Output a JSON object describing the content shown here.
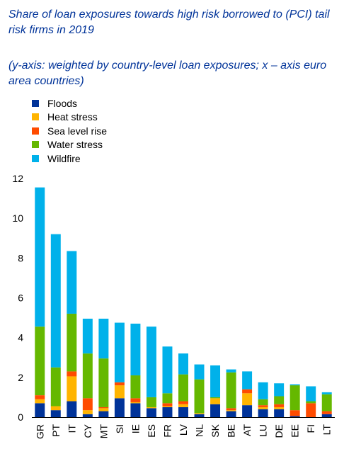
{
  "title": "Share of loan exposures towards high risk borrowed to (PCI) tail risk firms in 2019",
  "subtitle": "(y-axis: weighted by country-level loan exposures; x – axis euro area countries)",
  "chart_data": {
    "type": "bar",
    "stacked": true,
    "categories": [
      "GR",
      "PT",
      "IT",
      "CY",
      "MT",
      "SI",
      "IE",
      "ES",
      "FR",
      "LV",
      "NL",
      "SK",
      "BE",
      "AT",
      "LU",
      "DE",
      "EE",
      "FI",
      "LT"
    ],
    "series": [
      {
        "name": "Floods",
        "color": "#003399",
        "values": [
          0.7,
          0.35,
          0.8,
          0.15,
          0.3,
          0.95,
          0.7,
          0.45,
          0.5,
          0.5,
          0.15,
          0.65,
          0.3,
          0.6,
          0.4,
          0.4,
          0.05,
          0.0,
          0.15
        ]
      },
      {
        "name": "Heat stress",
        "color": "#FFB400",
        "values": [
          0.2,
          0.2,
          1.25,
          0.2,
          0.15,
          0.65,
          0.05,
          0.05,
          0.05,
          0.15,
          0.05,
          0.3,
          0.05,
          0.6,
          0.1,
          0.1,
          0.0,
          0.0,
          0.0
        ]
      },
      {
        "name": "Sea level rise",
        "color": "#FF4B00",
        "values": [
          0.2,
          0.0,
          0.25,
          0.6,
          0.05,
          0.15,
          0.2,
          0.0,
          0.15,
          0.15,
          0.0,
          0.0,
          0.1,
          0.2,
          0.1,
          0.15,
          0.3,
          0.7,
          0.15
        ]
      },
      {
        "name": "Water stress",
        "color": "#65B800",
        "values": [
          3.45,
          1.95,
          2.9,
          2.25,
          2.45,
          0.0,
          1.15,
          0.5,
          0.5,
          1.35,
          1.7,
          0.05,
          1.8,
          0.0,
          0.3,
          0.4,
          1.25,
          0.1,
          0.85
        ]
      },
      {
        "name": "Wildfire",
        "color": "#00B1EA",
        "values": [
          7.0,
          6.7,
          3.15,
          1.75,
          2.0,
          3.0,
          2.6,
          3.55,
          2.35,
          1.05,
          0.75,
          1.6,
          0.15,
          0.9,
          0.85,
          0.65,
          0.05,
          0.75,
          0.1
        ]
      }
    ],
    "ylim": [
      0,
      12
    ],
    "yticks": [
      0,
      2,
      4,
      6,
      8,
      10,
      12
    ],
    "legend_position": "top-left",
    "grid": false
  }
}
